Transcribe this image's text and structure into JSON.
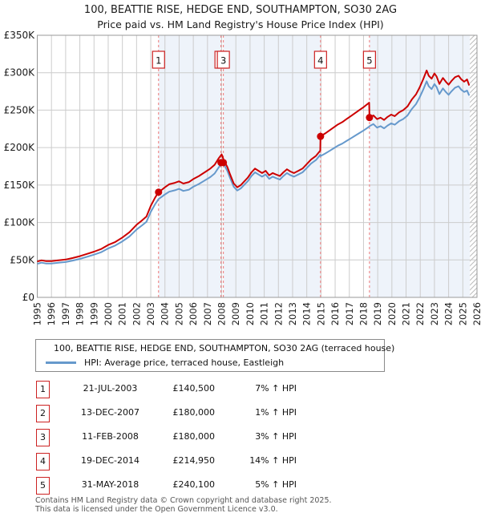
{
  "title_line1": "100, BEATTIE RISE, HEDGE END, SOUTHAMPTON, SO30 2AG",
  "title_line2": "Price paid vs. HM Land Registry's House Price Index (HPI)",
  "legend": {
    "items": [
      {
        "color": "#cc0000",
        "label": "100, BEATTIE RISE, HEDGE END, SOUTHAMPTON, SO30 2AG (terraced house)"
      },
      {
        "color": "#6699cc",
        "label": "HPI: Average price, terraced house, Eastleigh"
      }
    ]
  },
  "transactions": [
    {
      "num": "1",
      "date": "21-JUL-2003",
      "price": "£140,500",
      "hpi": "7% ↑ HPI"
    },
    {
      "num": "2",
      "date": "13-DEC-2007",
      "price": "£180,000",
      "hpi": "1% ↑ HPI"
    },
    {
      "num": "3",
      "date": "11-FEB-2008",
      "price": "£180,000",
      "hpi": "3% ↑ HPI"
    },
    {
      "num": "4",
      "date": "19-DEC-2014",
      "price": "£214,950",
      "hpi": "14% ↑ HPI"
    },
    {
      "num": "5",
      "date": "31-MAY-2018",
      "price": "£240,100",
      "hpi": "5% ↑ HPI"
    }
  ],
  "footer_line1": "Contains HM Land Registry data © Crown copyright and database right 2025.",
  "footer_line2": "This data is licensed under the Open Government Licence v3.0.",
  "chart_data": {
    "type": "line",
    "title": "Price paid vs. HM Land Registry's House Price Index (HPI)",
    "xlabel": "",
    "ylabel": "",
    "x_range": [
      1995,
      2026
    ],
    "y_range_thousands": [
      0,
      350
    ],
    "grid": true,
    "legend_position": "bottom",
    "colors": {
      "property_line": "#cc0000",
      "hpi_line": "#6699cc",
      "sale_dashed_line": "#ee7777",
      "band_fill": "#eef3fa",
      "gridline": "#cccccc",
      "plot_border": "#999999",
      "hatch_line": "#bbbbbb",
      "marker_box_border": "#cc2222"
    },
    "y_ticks": [
      {
        "v": 0,
        "label": "£0"
      },
      {
        "v": 50,
        "label": "£50K"
      },
      {
        "v": 100,
        "label": "£100K"
      },
      {
        "v": 150,
        "label": "£150K"
      },
      {
        "v": 200,
        "label": "£200K"
      },
      {
        "v": 250,
        "label": "£250K"
      },
      {
        "v": 300,
        "label": "£300K"
      },
      {
        "v": 350,
        "label": "£350K"
      }
    ],
    "x_ticks": [
      1995,
      1996,
      1997,
      1998,
      1999,
      2000,
      2001,
      2002,
      2003,
      2004,
      2005,
      2006,
      2007,
      2008,
      2009,
      2010,
      2011,
      2012,
      2013,
      2014,
      2015,
      2016,
      2017,
      2018,
      2019,
      2020,
      2021,
      2022,
      2023,
      2024,
      2025,
      2026
    ],
    "bands": [
      {
        "from": 2003.55,
        "to": 2007.95
      },
      {
        "from": 2008.12,
        "to": 2014.97
      },
      {
        "from": 2018.42,
        "to": 2025.5
      }
    ],
    "hatch": {
      "from": 2025.5,
      "to": 2026
    },
    "sale_markers": [
      {
        "n": "1",
        "x": 2003.55,
        "y": 140.5
      },
      {
        "n": "2",
        "x": 2007.95,
        "y": 180
      },
      {
        "n": "3",
        "x": 2008.12,
        "y": 180
      },
      {
        "n": "4",
        "x": 2014.97,
        "y": 214.95
      },
      {
        "n": "5",
        "x": 2018.42,
        "y": 240.1
      }
    ],
    "x": [
      1995.0,
      1995.3,
      1995.6,
      1996.0,
      1996.5,
      1997.0,
      1997.5,
      1998.0,
      1998.5,
      1999.0,
      1999.5,
      2000.0,
      2000.5,
      2001.0,
      2001.5,
      2002.0,
      2002.4,
      2002.7,
      2003.0,
      2003.3,
      2003.55,
      2003.8,
      2004.0,
      2004.3,
      2004.7,
      2005.0,
      2005.3,
      2005.7,
      2006.0,
      2006.4,
      2006.8,
      2007.2,
      2007.5,
      2007.8,
      2008.0,
      2008.15,
      2008.4,
      2008.6,
      2008.85,
      2009.1,
      2009.35,
      2009.6,
      2009.85,
      2010.1,
      2010.35,
      2010.6,
      2010.85,
      2011.1,
      2011.35,
      2011.6,
      2011.85,
      2012.1,
      2012.35,
      2012.6,
      2012.85,
      2013.1,
      2013.4,
      2013.7,
      2014.0,
      2014.3,
      2014.65,
      2014.95,
      2014.97,
      2015.3,
      2015.6,
      2015.9,
      2016.2,
      2016.5,
      2016.8,
      2017.1,
      2017.4,
      2017.7,
      2018.0,
      2018.2,
      2018.4,
      2018.42,
      2018.7,
      2018.95,
      2019.2,
      2019.45,
      2019.7,
      2019.95,
      2020.2,
      2020.5,
      2020.8,
      2021.1,
      2021.4,
      2021.7,
      2021.95,
      2022.2,
      2022.45,
      2022.6,
      2022.8,
      2023.0,
      2023.15,
      2023.35,
      2023.6,
      2023.8,
      2024.0,
      2024.2,
      2024.45,
      2024.7,
      2024.9,
      2025.1,
      2025.3,
      2025.45
    ],
    "series": [
      {
        "name": "100, BEATTIE RISE (terraced house)",
        "color": "#cc0000",
        "values": [
          48,
          49.5,
          48.5,
          48.5,
          49.5,
          50.5,
          52.5,
          55,
          58,
          61,
          64.5,
          70,
          74,
          80,
          87,
          97,
          103,
          108,
          122,
          133,
          140.5,
          144,
          147,
          151,
          153,
          155,
          152,
          154,
          158,
          162,
          167,
          172,
          177,
          186,
          191,
          183,
          174,
          164,
          152,
          147,
          150,
          155,
          160,
          167,
          172,
          169,
          166,
          169,
          163,
          166,
          164,
          162,
          167,
          171,
          168,
          166,
          169,
          172,
          178,
          184,
          189,
          196,
          215,
          219,
          223,
          227,
          231,
          234,
          238,
          242,
          246,
          250,
          254,
          257,
          260,
          240,
          243,
          238,
          240,
          237,
          241,
          244,
          242,
          247,
          250,
          255,
          264,
          271,
          280,
          291,
          303,
          296,
          292,
          299,
          295,
          285,
          293,
          288,
          284,
          289,
          294,
          296,
          291,
          288,
          291,
          283
        ]
      },
      {
        "name": "HPI: Average price, terraced house, Eastleigh",
        "color": "#6699cc",
        "values": [
          44.9,
          46.3,
          45.3,
          45.3,
          46.3,
          47.2,
          49.1,
          51.4,
          54.2,
          57,
          60.3,
          65.4,
          69.2,
          74.8,
          81.3,
          90.7,
          96.3,
          100.9,
          114,
          124.3,
          131.3,
          134.6,
          137.4,
          141.1,
          143,
          144.9,
          142.1,
          143.9,
          147.7,
          151.4,
          156.1,
          160.7,
          165.4,
          173.8,
          178.5,
          177.7,
          168.9,
          159.2,
          147.6,
          142.7,
          145.6,
          150.5,
          155.3,
          162.1,
          167,
          164.1,
          161.2,
          164.1,
          158.3,
          161.2,
          159.2,
          157.3,
          162.1,
          166,
          163.1,
          161.2,
          164.1,
          167,
          172.8,
          178.6,
          183.5,
          190.3,
          188.6,
          192.1,
          195.6,
          199.1,
          202.6,
          205.3,
          208.8,
          212.3,
          215.8,
          219.3,
          222.8,
          225.4,
          228.1,
          228.6,
          231.4,
          226.7,
          228.6,
          225.7,
          229.5,
          232.4,
          230.5,
          235.2,
          238.1,
          242.9,
          251.4,
          258.1,
          266.7,
          277.1,
          288.6,
          281.9,
          278.1,
          284.8,
          281,
          271.4,
          279,
          274.3,
          270.5,
          275.2,
          280,
          281.9,
          277.1,
          274.3,
          276.2,
          269.5
        ]
      }
    ]
  }
}
